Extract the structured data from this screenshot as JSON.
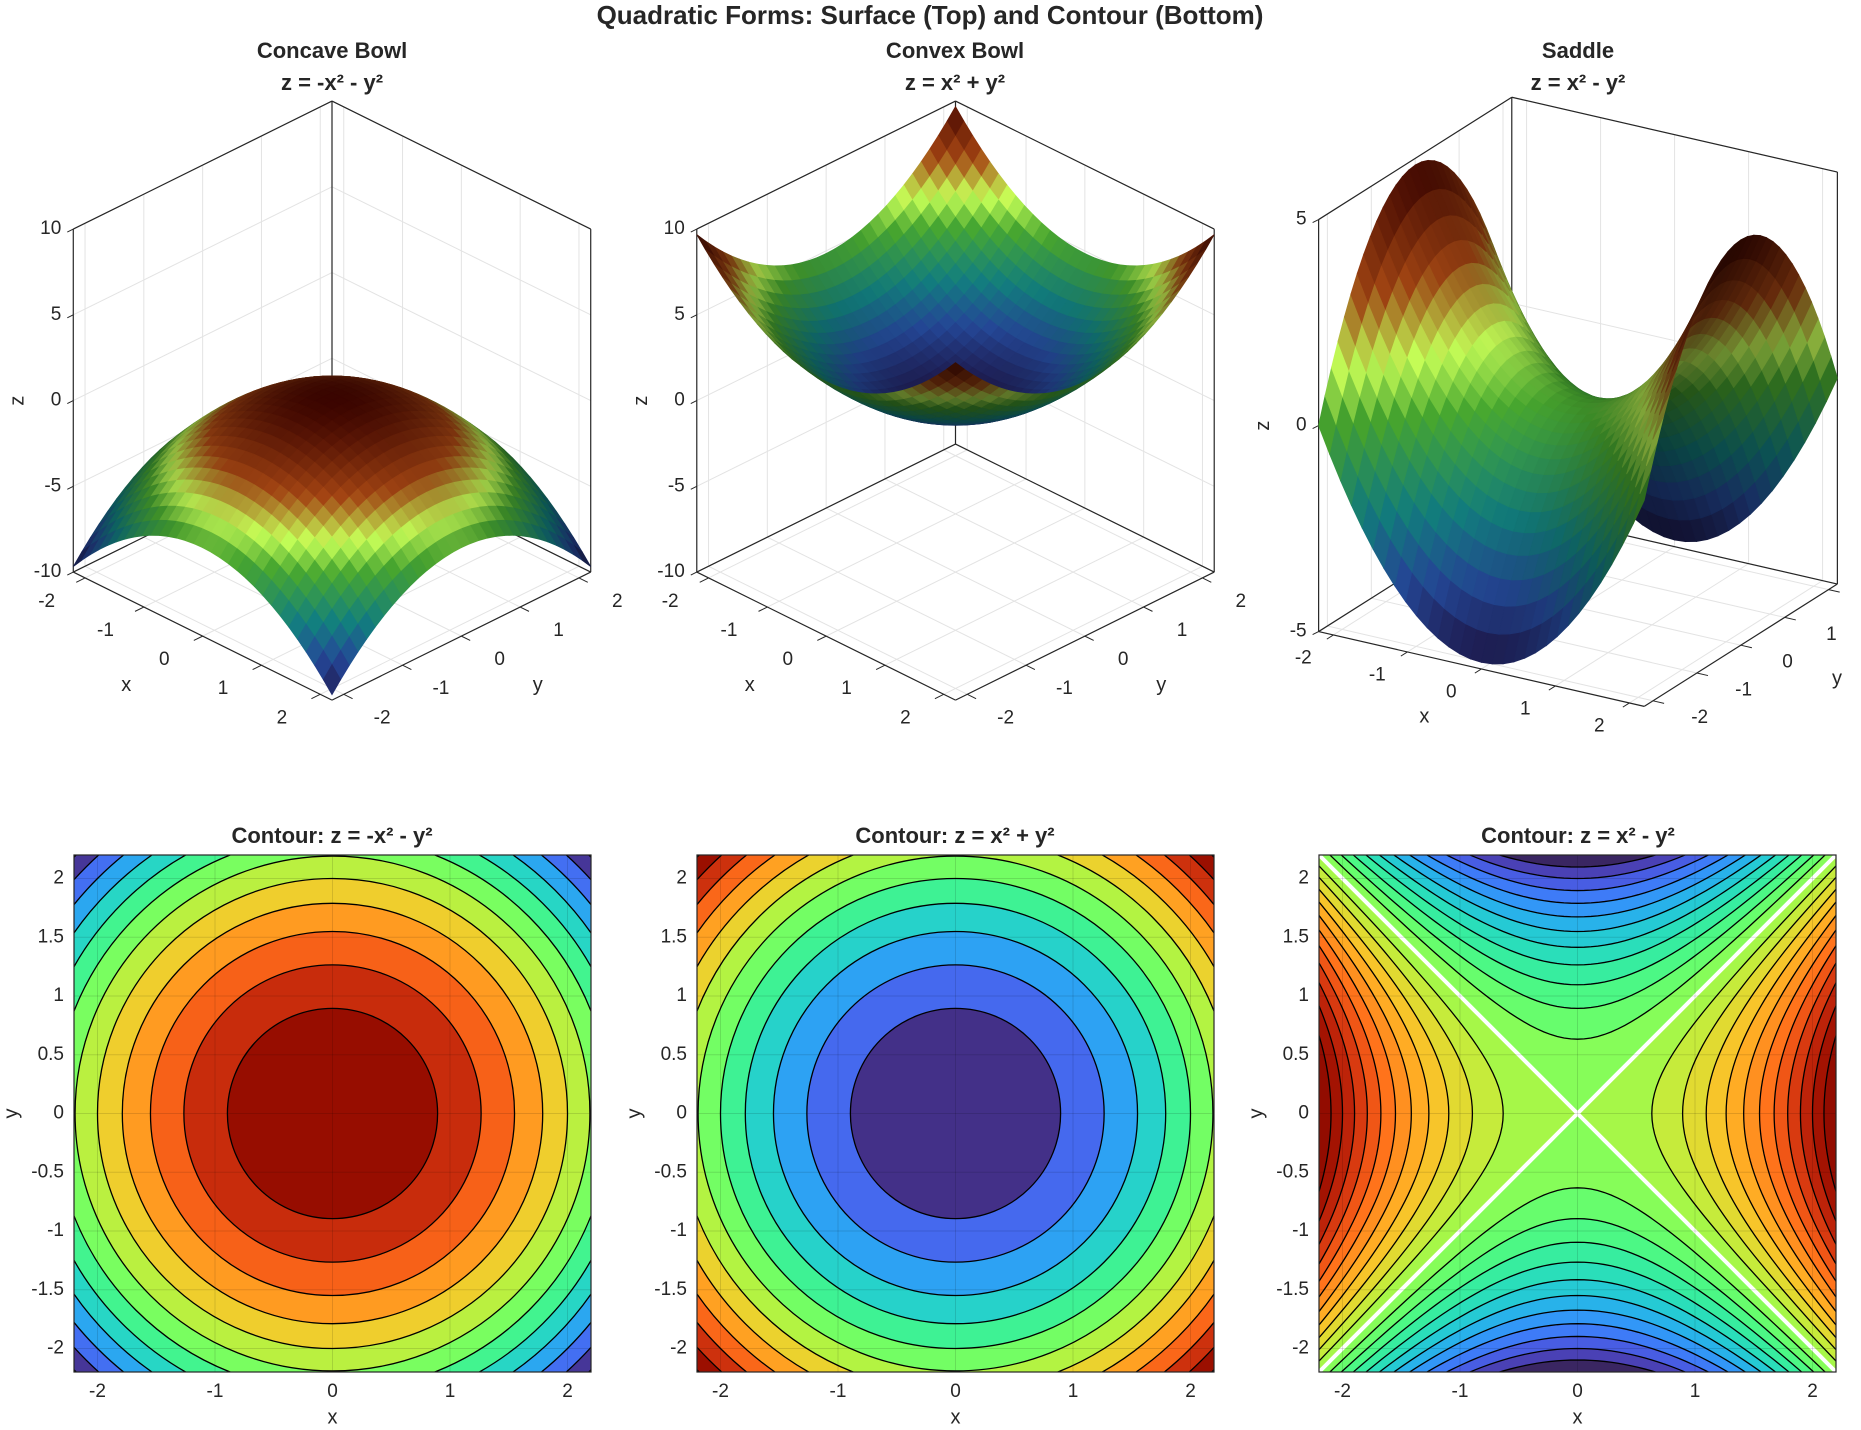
{
  "title": "Quadratic Forms: Surface (Top) and Contour (Bottom)",
  "panels": [
    {
      "title1": "Concave  Bowl",
      "title2": "z  =  -x²  -  y²"
    },
    {
      "title1": "Convex  Bowl",
      "title2": "z  =  x²  +  y²"
    },
    {
      "title1": "Saddle",
      "title2": "z  =  x²  -  y²"
    },
    {
      "title1": "Contour:  z  =  -x²  -  y²"
    },
    {
      "title1": "Contour:  z  =  x²  +  y²"
    },
    {
      "title1": "Contour:  z  =  x²  -  y²"
    }
  ],
  "chart_data": [
    {
      "type": "surface",
      "function": "-x^2-y^2",
      "sign": [
        -1,
        -1
      ],
      "xlim": [
        -2.2,
        2.2
      ],
      "ylim": [
        -2.2,
        2.2
      ],
      "zlim": [
        -10,
        10
      ],
      "xticks": [
        "-2",
        "-1",
        "0",
        "1",
        "2"
      ],
      "yticks": [
        "-2",
        "-1",
        "0",
        "1",
        "2"
      ],
      "zticks": [
        "-10",
        "-5",
        "0",
        "5",
        "10"
      ],
      "xlabel": "x",
      "ylabel": "y",
      "zlabel": "z",
      "grid": true
    },
    {
      "type": "surface",
      "function": "x^2+y^2",
      "sign": [
        1,
        1
      ],
      "xlim": [
        -2.2,
        2.2
      ],
      "ylim": [
        -2.2,
        2.2
      ],
      "zlim": [
        -10,
        10
      ],
      "xticks": [
        "-2",
        "-1",
        "0",
        "1",
        "2"
      ],
      "yticks": [
        "-2",
        "-1",
        "0",
        "1",
        "2"
      ],
      "zticks": [
        "-10",
        "-5",
        "0",
        "5",
        "10"
      ],
      "xlabel": "x",
      "ylabel": "y",
      "zlabel": "z",
      "grid": true
    },
    {
      "type": "surface",
      "function": "x^2-y^2",
      "sign": [
        1,
        -1
      ],
      "xlim": [
        -2.2,
        2.2
      ],
      "ylim": [
        -2.2,
        2.2
      ],
      "zlim": [
        -5,
        5
      ],
      "xticks": [
        "-2",
        "-1",
        "0",
        "1",
        "2"
      ],
      "yticks": [
        "-2",
        "-1",
        "0",
        "1",
        "2"
      ],
      "zticks": [
        "-5",
        "0",
        "5"
      ],
      "xlabel": "x",
      "ylabel": "y",
      "zlabel": "z",
      "grid": true
    },
    {
      "type": "contour",
      "function": "-x^2-y^2",
      "sign": [
        -1,
        -1
      ],
      "level_step": 0.8,
      "xlim": [
        -2.2,
        2.2
      ],
      "ylim": [
        -2.2,
        2.2
      ],
      "xticks": [
        "-2",
        "-1",
        "0",
        "1",
        "2"
      ],
      "yticks": [
        "-2",
        "-1.5",
        "-1",
        "-0.5",
        "0",
        "0.5",
        "1",
        "1.5",
        "2"
      ],
      "xlabel": "x",
      "ylabel": "y",
      "colormap": "turbo",
      "grid": true
    },
    {
      "type": "contour",
      "function": "x^2+y^2",
      "sign": [
        1,
        1
      ],
      "level_step": 0.8,
      "xlim": [
        -2.2,
        2.2
      ],
      "ylim": [
        -2.2,
        2.2
      ],
      "xticks": [
        "-2",
        "-1",
        "0",
        "1",
        "2"
      ],
      "yticks": [
        "-2",
        "-1.5",
        "-1",
        "-0.5",
        "0",
        "0.5",
        "1",
        "1.5",
        "2"
      ],
      "xlabel": "x",
      "ylabel": "y",
      "colormap": "turbo",
      "grid": true
    },
    {
      "type": "contour",
      "function": "x^2-y^2",
      "sign": [
        1,
        -1
      ],
      "level_step": 0.4,
      "xlim": [
        -2.2,
        2.2
      ],
      "ylim": [
        -2.2,
        2.2
      ],
      "xticks": [
        "-2",
        "-1",
        "0",
        "1",
        "2"
      ],
      "yticks": [
        "-2",
        "-1.5",
        "-1",
        "-0.5",
        "0",
        "0.5",
        "1",
        "1.5",
        "2"
      ],
      "xlabel": "x",
      "ylabel": "y",
      "colormap": "turbo",
      "zero_line_color": "#ffffff",
      "grid": true
    }
  ]
}
